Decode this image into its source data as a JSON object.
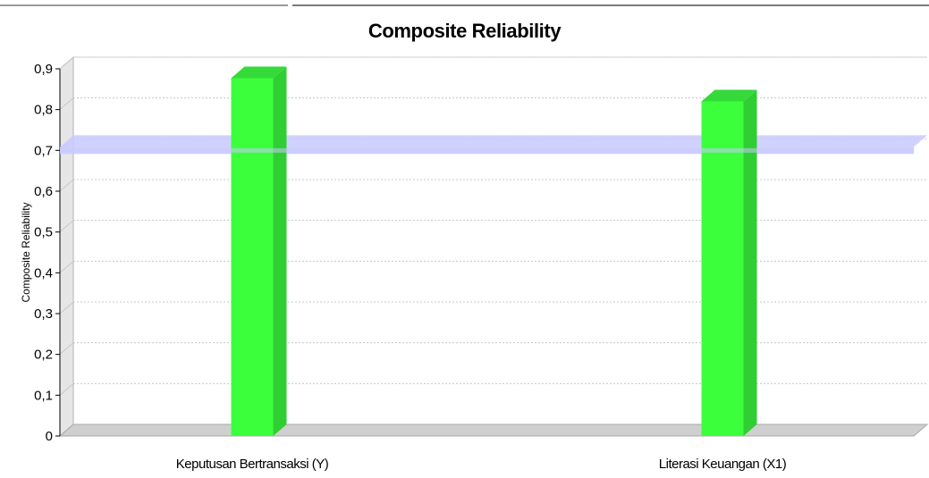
{
  "chart_data": {
    "type": "bar",
    "title": "Composite Reliability",
    "xlabel": "",
    "ylabel": "Composite Reliability",
    "categories": [
      "Keputusan Bertransaksi (Y)",
      "Literasi Keuangan (X1)"
    ],
    "series": [
      {
        "values": [
          0.877,
          0.82
        ]
      }
    ],
    "ylim": [
      0,
      0.9
    ],
    "yticks": [
      "0",
      "0,1",
      "0,2",
      "0,3",
      "0,4",
      "0,5",
      "0,6",
      "0,7",
      "0,8",
      "0,9"
    ],
    "threshold_line": 0.7,
    "grid": true,
    "style": "3d",
    "colors": {
      "bar": "#3cff3c",
      "bar_side": "#2fcf33",
      "bar_top": "#36d93a",
      "threshold": "#c9c9ff",
      "grid": "#c8c8c8",
      "floor": "#cfcfcf",
      "wall": "#e6e6e6"
    }
  }
}
